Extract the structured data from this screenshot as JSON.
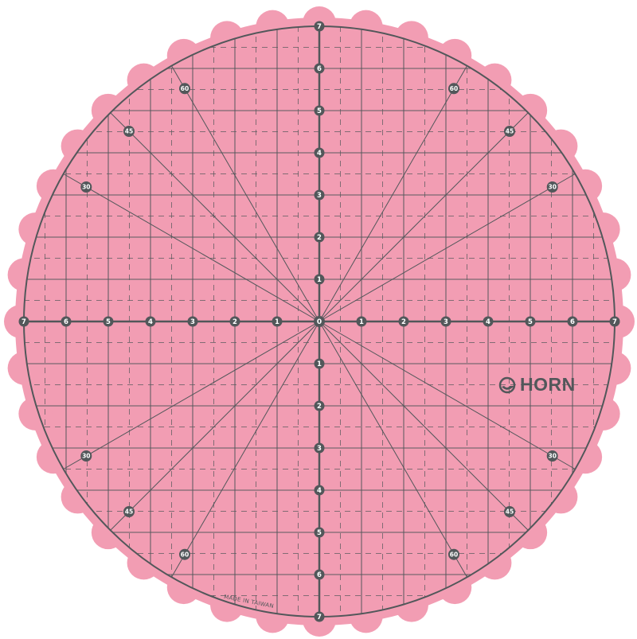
{
  "mat": {
    "brand": "HORN",
    "made_in": "MADE IN TAIWAN",
    "axis_labels": [
      "0",
      "1",
      "2",
      "3",
      "4",
      "5",
      "6",
      "7"
    ],
    "angle_labels": [
      "30",
      "45",
      "60"
    ],
    "colors": {
      "mat": "#f29db3",
      "lines": "#52575a",
      "label_text": "#ffffff"
    }
  }
}
